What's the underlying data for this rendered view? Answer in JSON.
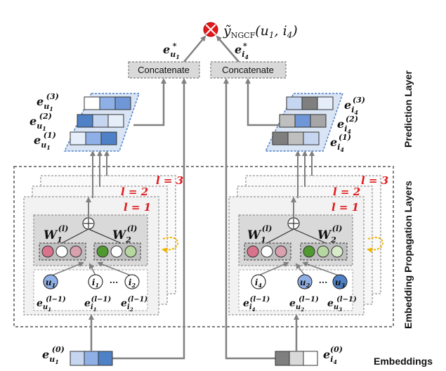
{
  "output": {
    "symbol": "⊗",
    "score": "ỹ",
    "score_sub": "NGCF",
    "score_args": "(u",
    "score_args_u_sub": "1",
    "score_args_mid": ", i",
    "score_args_i_sub": "4",
    "score_args_end": ")"
  },
  "concat": {
    "left_label": "Concatenate",
    "right_label": "Concatenate"
  },
  "user_side": {
    "e_star": "e",
    "e_star_sub": "u",
    "e_star_subsub": "1",
    "layer_labels": [
      "e",
      "e",
      "e"
    ],
    "layer_sups": [
      "(3)",
      "(2)",
      "(1)"
    ],
    "layer_subs": [
      "u",
      "u",
      "u"
    ],
    "layer_subsubs": [
      "1",
      "1",
      "1"
    ],
    "l_labels": [
      "l = 3",
      "l = 2",
      "l = 1"
    ],
    "w1": "W",
    "w1_sub": "1",
    "w1_sup": "(l)",
    "w2": "W",
    "w2_sub": "2",
    "w2_sup": "(l)",
    "nodes": [
      {
        "main": "u",
        "sub": "1"
      },
      {
        "main": "i",
        "sub": "1"
      },
      {
        "main": "i",
        "sub": "2"
      }
    ],
    "dots": "···",
    "node_embeds": [
      {
        "e": "e",
        "sup": "(l−1)",
        "sub": "u",
        "subsub": "1"
      },
      {
        "e": "e",
        "sup": "(l−1)",
        "sub": "i",
        "subsub": "1"
      },
      {
        "e": "e",
        "sup": "(l−1)",
        "sub": "i",
        "subsub": "2"
      }
    ],
    "embed": {
      "e": "e",
      "sup": "(0)",
      "sub": "u",
      "subsub": "1"
    }
  },
  "item_side": {
    "e_star": "e",
    "e_star_sub": "i",
    "e_star_subsub": "4",
    "layer_labels": [
      "e",
      "e",
      "e"
    ],
    "layer_sups": [
      "(3)",
      "(2)",
      "(1)"
    ],
    "layer_subs": [
      "i",
      "i",
      "i"
    ],
    "layer_subsubs": [
      "4",
      "4",
      "4"
    ],
    "l_labels": [
      "l = 3",
      "l = 2",
      "l = 1"
    ],
    "w1": "W",
    "w1_sub": "1",
    "w1_sup": "(l)",
    "w2": "W",
    "w2_sub": "2",
    "w2_sup": "(l)",
    "nodes": [
      {
        "main": "i",
        "sub": "4"
      },
      {
        "main": "u",
        "sub": "2"
      },
      {
        "main": "u",
        "sub": "3"
      }
    ],
    "dots": "···",
    "node_embeds": [
      {
        "e": "e",
        "sup": "(l−1)",
        "sub": "i",
        "subsub": "4"
      },
      {
        "e": "e",
        "sup": "(l−1)",
        "sub": "u",
        "subsub": "2"
      },
      {
        "e": "e",
        "sup": "(l−1)",
        "sub": "u",
        "subsub": "3"
      }
    ],
    "embed": {
      "e": "e",
      "sup": "(0)",
      "sub": "i",
      "subsub": "4"
    }
  },
  "side_labels": {
    "prediction": "Prediction Layer",
    "propagation": "Embedding Propagation Layers",
    "embeddings": "Embeddings"
  },
  "colors": {
    "accent_red": "#e0191b",
    "blue_light": "#c6d5f0",
    "blue_mid": "#8fb0e6",
    "blue_dark": "#4f81c7",
    "gray_dark": "#7f7f7f",
    "pink": "#d9738b",
    "green": "#6fae4a",
    "green_light": "#b7d7a0",
    "yellow": "#f0b400"
  }
}
